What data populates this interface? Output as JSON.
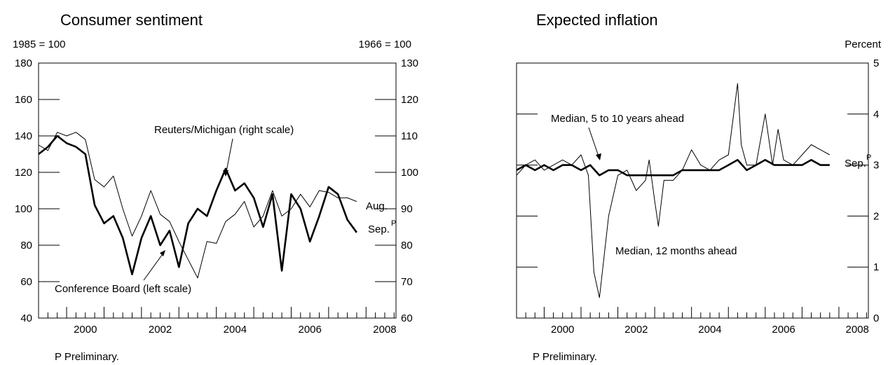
{
  "chart_data": [
    {
      "type": "line",
      "title": "Consumer sentiment",
      "left_axis": {
        "unit": "1985 = 100",
        "range": [
          40,
          180
        ],
        "ticks": [
          "40",
          "60",
          "80",
          "100",
          "120",
          "140",
          "160",
          "180"
        ]
      },
      "right_axis": {
        "unit": "1966 = 100",
        "range": [
          60,
          130
        ],
        "ticks": [
          "60",
          "70",
          "80",
          "90",
          "100",
          "110",
          "120",
          "130"
        ]
      },
      "x_range": [
        1999.25,
        2008.8
      ],
      "x_ticks": [
        "2000",
        "2002",
        "2004",
        "2006",
        "2008"
      ],
      "note": "P Preliminary.",
      "series": [
        {
          "name": "Conference Board (left scale)",
          "axis": "left",
          "x": [
            1999.25,
            1999.5,
            1999.75,
            2000.0,
            2000.25,
            2000.5,
            2000.75,
            2001.0,
            2001.25,
            2001.5,
            2001.75,
            2002.0,
            2002.25,
            2002.5,
            2002.75,
            2003.0,
            2003.25,
            2003.5,
            2003.75,
            2004.0,
            2004.25,
            2004.5,
            2004.75,
            2005.0,
            2005.25,
            2005.5,
            2005.75,
            2006.0,
            2006.25,
            2006.5,
            2006.75,
            2007.0,
            2007.25,
            2007.5,
            2007.75
          ],
          "y": [
            135,
            132,
            142,
            140,
            142,
            138,
            116,
            112,
            118,
            100,
            85,
            96,
            110,
            97,
            93,
            82,
            72,
            62,
            82,
            81,
            93,
            97,
            104,
            90,
            96,
            110,
            96,
            100,
            108,
            101,
            110,
            109,
            106,
            106,
            104
          ]
        },
        {
          "name": "Reuters/Michigan (right scale)",
          "axis": "right",
          "x": [
            1999.25,
            1999.5,
            1999.75,
            2000.0,
            2000.25,
            2000.5,
            2000.75,
            2001.0,
            2001.25,
            2001.5,
            2001.75,
            2002.0,
            2002.25,
            2002.5,
            2002.75,
            2003.0,
            2003.25,
            2003.5,
            2003.75,
            2004.0,
            2004.25,
            2004.5,
            2004.75,
            2005.0,
            2005.25,
            2005.5,
            2005.75,
            2006.0,
            2006.25,
            2006.5,
            2006.75,
            2007.0,
            2007.25,
            2007.5,
            2007.75
          ],
          "y": [
            105,
            107,
            110,
            108,
            107,
            105,
            91,
            86,
            88,
            82,
            72,
            82,
            88,
            80,
            84,
            74,
            86,
            90,
            88,
            95,
            101,
            95,
            97,
            93,
            85,
            94,
            73,
            94,
            90,
            81,
            88,
            96,
            94,
            87,
            83.5
          ]
        }
      ],
      "annotations": [
        "Aug.",
        "Sep.",
        "P"
      ]
    },
    {
      "type": "line",
      "title": "Expected inflation",
      "right_axis": {
        "unit": "Percent",
        "range": [
          0,
          5
        ],
        "ticks": [
          "0",
          "1",
          "2",
          "3",
          "4",
          "5"
        ]
      },
      "x_range": [
        1999.25,
        2008.8
      ],
      "x_ticks": [
        "2000",
        "2002",
        "2004",
        "2006",
        "2008"
      ],
      "note": "P Preliminary.",
      "series": [
        {
          "name": "Median, 12 months ahead",
          "x": [
            1999.25,
            1999.5,
            1999.75,
            2000.0,
            2000.25,
            2000.5,
            2000.75,
            2001.0,
            2001.2,
            2001.35,
            2001.5,
            2001.75,
            2002.0,
            2002.25,
            2002.5,
            2002.75,
            2002.85,
            2003.0,
            2003.1,
            2003.25,
            2003.5,
            2003.75,
            2004.0,
            2004.25,
            2004.5,
            2004.75,
            2005.0,
            2005.25,
            2005.35,
            2005.5,
            2005.75,
            2006.0,
            2006.2,
            2006.35,
            2006.5,
            2006.75,
            2007.0,
            2007.25,
            2007.5,
            2007.75
          ],
          "y": [
            2.8,
            3.0,
            3.1,
            2.9,
            3.0,
            3.1,
            3.0,
            3.2,
            2.8,
            0.9,
            0.4,
            2.0,
            2.8,
            2.9,
            2.5,
            2.7,
            3.1,
            2.3,
            1.8,
            2.7,
            2.7,
            2.9,
            3.3,
            3.0,
            2.9,
            3.1,
            3.2,
            4.6,
            3.4,
            3.0,
            3.0,
            4.0,
            3.0,
            3.7,
            3.1,
            3.0,
            3.2,
            3.4,
            3.3,
            3.2
          ]
        },
        {
          "name": "Median, 5 to 10 years ahead",
          "x": [
            1999.25,
            1999.5,
            1999.75,
            2000.0,
            2000.25,
            2000.5,
            2000.75,
            2001.0,
            2001.25,
            2001.5,
            2001.75,
            2002.0,
            2002.25,
            2002.5,
            2002.75,
            2003.0,
            2003.25,
            2003.5,
            2003.75,
            2004.0,
            2004.25,
            2004.5,
            2004.75,
            2005.0,
            2005.25,
            2005.5,
            2005.75,
            2006.0,
            2006.25,
            2006.5,
            2006.75,
            2007.0,
            2007.25,
            2007.5,
            2007.75
          ],
          "y": [
            2.9,
            3.0,
            2.9,
            3.0,
            2.9,
            3.0,
            3.0,
            2.9,
            3.0,
            2.8,
            2.9,
            2.9,
            2.8,
            2.8,
            2.8,
            2.8,
            2.8,
            2.8,
            2.9,
            2.9,
            2.9,
            2.9,
            2.9,
            3.0,
            3.1,
            2.9,
            3.0,
            3.1,
            3.0,
            3.0,
            3.0,
            3.0,
            3.1,
            3.0,
            3.0
          ]
        }
      ],
      "annotations": [
        "Sep.",
        "P"
      ]
    }
  ]
}
